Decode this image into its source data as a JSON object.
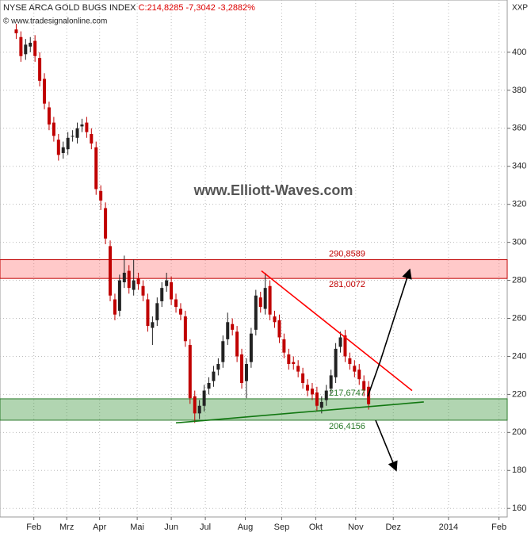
{
  "chart_data": {
    "type": "candlestick",
    "title": "NYSE ARCA GOLD BUGS INDEX",
    "last_values": "C:214,8285 -7,3042 -3,2882%",
    "source": "© www.tradesignalonline.com",
    "watermark": "www.Elliott-Waves.com",
    "symbol": "XXP",
    "up_color": "#222222",
    "down_color": "#c00000",
    "grid": true,
    "xlim": [
      16.2,
      448
    ],
    "ylim": [
      155.5,
      427.5
    ],
    "yticks": [
      160,
      180,
      200,
      220,
      240,
      260,
      280,
      300,
      320,
      340,
      360,
      380,
      400
    ],
    "xticks": [
      {
        "value": 45,
        "label": "Feb"
      },
      {
        "value": 73,
        "label": "Mrz"
      },
      {
        "value": 101,
        "label": "Apr"
      },
      {
        "value": 133,
        "label": "Mai"
      },
      {
        "value": 162,
        "label": "Jun"
      },
      {
        "value": 191,
        "label": "Jul"
      },
      {
        "value": 225,
        "label": "Aug"
      },
      {
        "value": 256,
        "label": "Sep"
      },
      {
        "value": 285,
        "label": "Okt"
      },
      {
        "value": 319,
        "label": "Nov"
      },
      {
        "value": 351,
        "label": "Dez"
      },
      {
        "value": 398,
        "label": "2014"
      },
      {
        "value": 441,
        "label": "Feb"
      }
    ],
    "x": [
      30,
      34,
      38,
      42,
      46,
      50,
      54,
      58,
      62,
      66,
      70,
      74,
      78,
      82,
      86,
      90,
      94,
      98,
      102,
      106,
      110,
      114,
      118,
      122,
      126,
      130,
      134,
      138,
      142,
      146,
      150,
      154,
      158,
      162,
      166,
      170,
      174,
      178,
      182,
      186,
      190,
      194,
      198,
      202,
      206,
      210,
      214,
      218,
      222,
      226,
      230,
      234,
      238,
      242,
      246,
      250,
      254,
      258,
      262,
      266,
      270,
      274,
      278,
      282,
      286,
      290,
      294,
      298,
      302,
      306,
      310,
      314,
      318,
      322,
      326,
      330
    ],
    "open": [
      412,
      408,
      399,
      403,
      406,
      397,
      386,
      371,
      363,
      354,
      347,
      349,
      356,
      355,
      361,
      363,
      357,
      350,
      327,
      318,
      298,
      270,
      264,
      279,
      285,
      275,
      281,
      277,
      270,
      255,
      259,
      269,
      277,
      279,
      270,
      265,
      261,
      246,
      219,
      210,
      214,
      223,
      227,
      233,
      237,
      249,
      257,
      253,
      241,
      227,
      237,
      254,
      271,
      265,
      277,
      261,
      259,
      249,
      241,
      237,
      235,
      231,
      225,
      223,
      221,
      213,
      217,
      223,
      229,
      245,
      251,
      239,
      235,
      233,
      227,
      224
    ],
    "high": [
      415,
      411,
      407,
      408,
      409,
      400,
      389,
      374,
      366,
      357,
      353,
      358,
      359,
      363,
      365,
      366,
      360,
      353,
      330,
      321,
      301,
      273,
      283,
      293,
      288,
      291,
      284,
      280,
      273,
      261,
      271,
      279,
      284,
      282,
      273,
      268,
      264,
      249,
      222,
      217,
      225,
      229,
      235,
      239,
      251,
      263,
      260,
      256,
      244,
      239,
      255,
      275,
      274,
      284,
      280,
      264,
      262,
      252,
      244,
      240,
      238,
      234,
      228,
      226,
      224,
      219,
      225,
      233,
      247,
      253,
      254,
      242,
      238,
      236,
      230,
      227
    ],
    "low": [
      407,
      395,
      396,
      400,
      395,
      382,
      370,
      359,
      353,
      343,
      344,
      346,
      353,
      352,
      358,
      355,
      349,
      325,
      317,
      299,
      269,
      259,
      261,
      276,
      273,
      272,
      275,
      269,
      253,
      246,
      256,
      266,
      274,
      267,
      263,
      259,
      245,
      215,
      205,
      207,
      211,
      220,
      224,
      230,
      234,
      246,
      251,
      237,
      223,
      218,
      234,
      251,
      263,
      262,
      259,
      255,
      247,
      239,
      233,
      233,
      229,
      223,
      219,
      217,
      211,
      210,
      214,
      220,
      226,
      242,
      237,
      233,
      229,
      225,
      219,
      212
    ],
    "close": [
      410,
      398,
      404,
      405,
      398,
      385,
      373,
      362,
      356,
      346,
      350,
      355,
      356,
      360,
      362,
      358,
      352,
      328,
      322,
      302,
      272,
      262,
      280,
      284,
      276,
      280,
      278,
      272,
      256,
      258,
      268,
      276,
      280,
      270,
      266,
      262,
      248,
      218,
      210,
      214,
      222,
      226,
      232,
      236,
      248,
      258,
      254,
      240,
      226,
      236,
      252,
      272,
      266,
      276,
      262,
      258,
      250,
      242,
      236,
      236,
      232,
      226,
      222,
      220,
      214,
      216,
      222,
      230,
      244,
      250,
      240,
      236,
      232,
      228,
      222,
      214.83
    ],
    "zones": [
      {
        "color": "#c00000",
        "from": {
          "value": 281.0072,
          "label": "281,0072"
        },
        "to": {
          "value": 290.8589,
          "label": "290,8589"
        }
      },
      {
        "color": "#2a7a2a",
        "from": {
          "value": 206.4156,
          "label": "206,4156"
        },
        "to": {
          "value": 217.6747,
          "label": "217,6747"
        }
      }
    ],
    "lines": [
      {
        "color": "#ff0000",
        "x": [
          238.8,
          367
        ],
        "y": [
          285,
          222
        ]
      },
      {
        "color": "#117711",
        "x": [
          166,
          377
        ],
        "y": [
          205,
          216
        ]
      },
      {
        "color": "#000000",
        "x": [
          329.3,
          340,
          365
        ],
        "y": [
          218.9,
          237.6,
          285.6
        ]
      },
      {
        "color": "#000000",
        "x": [
          336,
          353.5
        ],
        "y": [
          206.3,
          180
        ]
      }
    ]
  }
}
